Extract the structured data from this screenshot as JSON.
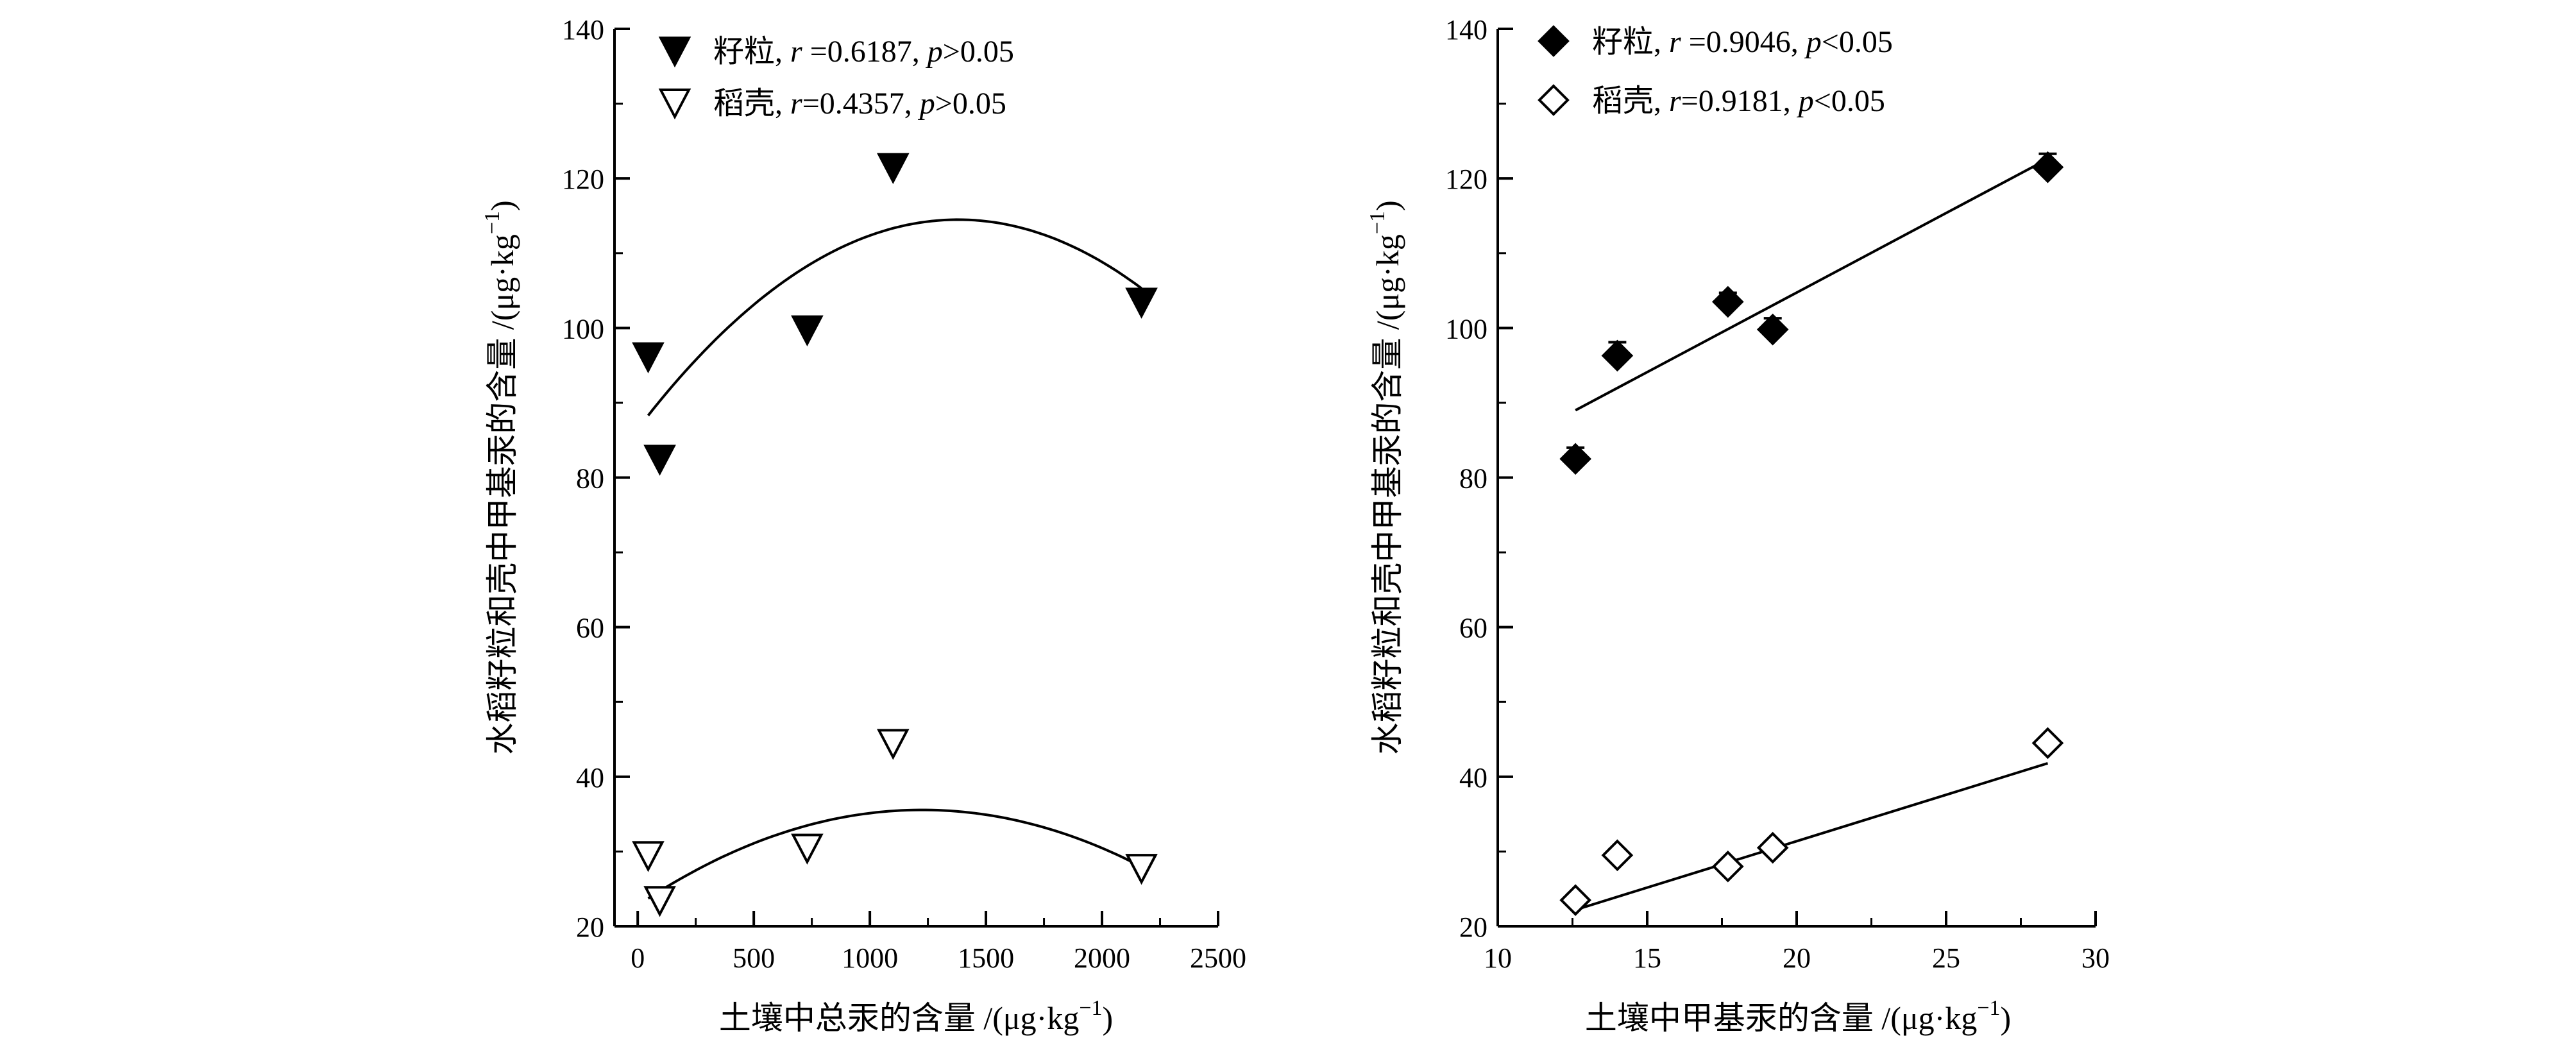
{
  "chart_data": [
    {
      "type": "scatter",
      "title": "",
      "xlabel": "土壤中总汞的含量 /(μg·kg",
      "xlabel_sup": "−1",
      "xlabel_close": ")",
      "ylabel": "水稻籽粒和壳中甲基汞的含量 /(μg·kg",
      "ylabel_sup": "−1",
      "ylabel_close": ")",
      "xlim": [
        -100,
        2500
      ],
      "ylim": [
        20,
        140
      ],
      "xticks": [
        0,
        500,
        1000,
        1500,
        2000,
        2500
      ],
      "yticks": [
        20,
        40,
        60,
        80,
        100,
        120,
        140
      ],
      "xtick_labels": [
        "0",
        "500",
        "1000",
        "1500",
        "2000",
        "2500"
      ],
      "ytick_labels": [
        "20",
        "40",
        "60",
        "80",
        "100",
        "120",
        "140"
      ],
      "fit": "quadratic",
      "legend_position": "top-left",
      "series": [
        {
          "name": "籽粒",
          "marker": "triangle-down-filled",
          "legend_parts": [
            ", ",
            "r",
            " =0.6187, ",
            "p",
            ">0.05"
          ],
          "points": [
            {
              "x": 45,
              "y": 96.2,
              "err": 1.5
            },
            {
              "x": 95,
              "y": 82.5,
              "err": 1.5
            },
            {
              "x": 730,
              "y": 99.8,
              "err": 1.5
            },
            {
              "x": 1100,
              "y": 121.5,
              "err": 1.5
            },
            {
              "x": 2170,
              "y": 103.5,
              "err": 1.2
            }
          ],
          "fit_curve": {
            "x_range": [
              45,
              2170
            ],
            "coef": [
              86.51,
              0.04056,
              -1.47e-05
            ]
          }
        },
        {
          "name": "稻壳",
          "marker": "triangle-down-open",
          "legend_parts": [
            ", ",
            "r",
            "=0.4357, ",
            "p",
            ">0.05"
          ],
          "points": [
            {
              "x": 45,
              "y": 29.5,
              "err": 1.0
            },
            {
              "x": 95,
              "y": 23.5,
              "err": 1.0
            },
            {
              "x": 730,
              "y": 30.5,
              "err": 1.0
            },
            {
              "x": 1100,
              "y": 44.5,
              "err": 1.0
            },
            {
              "x": 2170,
              "y": 27.8,
              "err": 0.8
            }
          ],
          "fit_curve": {
            "x_range": [
              45,
              2170
            ],
            "coef": [
              22.8,
              0.02083,
              -8.5e-06
            ]
          }
        }
      ]
    },
    {
      "type": "scatter",
      "title": "",
      "xlabel": "土壤中甲基汞的含量 /(μg·kg",
      "xlabel_sup": "−1",
      "xlabel_close": ")",
      "ylabel": "水稻籽粒和壳中甲基汞的含量 /(μg·kg",
      "ylabel_sup": "−1",
      "ylabel_close": ")",
      "xlim": [
        10,
        30
      ],
      "ylim": [
        20,
        140
      ],
      "xticks": [
        10,
        15,
        20,
        25,
        30
      ],
      "yticks": [
        20,
        40,
        60,
        80,
        100,
        120,
        140
      ],
      "xtick_labels": [
        "10",
        "15",
        "20",
        "25",
        "30"
      ],
      "ytick_labels": [
        "20",
        "40",
        "60",
        "80",
        "100",
        "120",
        "140"
      ],
      "fit": "linear",
      "legend_position": "top-left",
      "series": [
        {
          "name": "籽粒",
          "marker": "diamond-filled",
          "legend_parts": [
            ", ",
            "r",
            " =0.9046, ",
            "p",
            "<0.05"
          ],
          "points": [
            {
              "x": 12.6,
              "y": 82.5,
              "err": 1.5
            },
            {
              "x": 14.0,
              "y": 96.3,
              "err": 1.8
            },
            {
              "x": 17.7,
              "y": 103.5,
              "err": 1.2
            },
            {
              "x": 19.2,
              "y": 99.8,
              "err": 1.5
            },
            {
              "x": 28.4,
              "y": 121.5,
              "err": 1.8
            }
          ],
          "fit_line": {
            "x1": 12.6,
            "y1": 89.0,
            "x2": 28.4,
            "y2": 122.6
          }
        },
        {
          "name": "稻壳",
          "marker": "diamond-open",
          "legend_parts": [
            ", ",
            "r",
            "=0.9181, ",
            "p",
            "<0.05"
          ],
          "points": [
            {
              "x": 12.6,
              "y": 23.5,
              "err": 0.8
            },
            {
              "x": 14.0,
              "y": 29.5,
              "err": 0.8
            },
            {
              "x": 17.7,
              "y": 28.0,
              "err": 0.8
            },
            {
              "x": 19.2,
              "y": 30.5,
              "err": 0.8
            },
            {
              "x": 28.4,
              "y": 44.5,
              "err": 0.8
            }
          ],
          "fit_line": {
            "x1": 12.6,
            "y1": 22.2,
            "x2": 28.4,
            "y2": 41.8
          }
        }
      ]
    }
  ]
}
